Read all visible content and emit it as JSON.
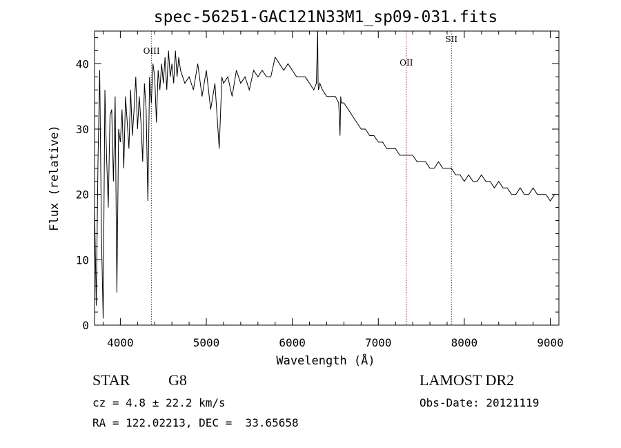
{
  "chart_data": {
    "type": "line",
    "title": "spec-56251-GAC121N33M1_sp09-031.fits",
    "xlabel": "Wavelength (Å)",
    "ylabel": "Flux (relative)",
    "xlim": [
      3700,
      9100
    ],
    "ylim": [
      0,
      45
    ],
    "xticks": [
      4000,
      5000,
      6000,
      7000,
      8000,
      9000
    ],
    "yticks": [
      0,
      10,
      20,
      30,
      40
    ],
    "grid": false,
    "legend": "none",
    "line_color": "#000000",
    "marker_color": "#8b1a1a",
    "line_markers": [
      {
        "label": "OIII",
        "x": 4363
      },
      {
        "label": "OII",
        "x": 7325
      },
      {
        "label": "SII",
        "x": 7850
      }
    ],
    "series": [
      {
        "x": [
          3700,
          3720,
          3740,
          3760,
          3780,
          3800,
          3820,
          3840,
          3860,
          3880,
          3900,
          3920,
          3940,
          3960,
          3980,
          4000,
          4020,
          4040,
          4060,
          4080,
          4100,
          4120,
          4140,
          4160,
          4180,
          4200,
          4220,
          4240,
          4260,
          4280,
          4300,
          4320,
          4340,
          4360,
          4380,
          4400,
          4420,
          4440,
          4460,
          4480,
          4500,
          4520,
          4540,
          4560,
          4580,
          4600,
          4620,
          4640,
          4660,
          4680,
          4700,
          4750,
          4800,
          4850,
          4900,
          4950,
          5000,
          5050,
          5100,
          5150,
          5170,
          5180,
          5200,
          5250,
          5300,
          5350,
          5400,
          5450,
          5500,
          5550,
          5600,
          5650,
          5700,
          5750,
          5800,
          5850,
          5900,
          5950,
          6000,
          6050,
          6100,
          6150,
          6200,
          6250,
          6280,
          6295,
          6300,
          6305,
          6320,
          6350,
          6400,
          6450,
          6500,
          6540,
          6555,
          6563,
          6570,
          6600,
          6650,
          6700,
          6750,
          6800,
          6850,
          6900,
          6950,
          7000,
          7050,
          7100,
          7150,
          7200,
          7250,
          7300,
          7350,
          7400,
          7450,
          7500,
          7550,
          7600,
          7650,
          7700,
          7750,
          7800,
          7850,
          7900,
          7950,
          8000,
          8050,
          8100,
          8150,
          8200,
          8250,
          8300,
          8350,
          8400,
          8450,
          8500,
          8550,
          8600,
          8650,
          8700,
          8750,
          8800,
          8850,
          8900,
          8950,
          9000,
          9050
        ],
        "y": [
          18,
          3,
          25,
          39,
          14,
          1,
          36,
          26,
          18,
          32,
          33,
          22,
          35,
          5,
          30,
          28,
          33,
          24,
          35,
          31,
          27,
          36,
          29,
          33,
          38,
          30,
          35,
          31,
          25,
          37,
          33,
          19,
          38,
          34,
          40,
          38,
          31,
          39,
          36,
          40,
          37,
          41,
          36,
          42,
          38,
          40,
          37,
          42,
          38,
          41,
          39,
          37,
          38,
          36,
          40,
          35,
          39,
          33,
          37,
          27,
          34,
          38,
          37,
          38,
          35,
          39,
          37,
          38,
          36,
          39,
          38,
          39,
          38,
          38,
          41,
          40,
          39,
          40,
          39,
          38,
          38,
          38,
          37,
          36,
          37,
          45,
          37,
          36,
          37,
          36,
          35,
          35,
          35,
          34,
          29,
          35,
          34,
          34,
          33,
          32,
          31,
          30,
          30,
          29,
          29,
          28,
          28,
          27,
          27,
          27,
          26,
          26,
          26,
          26,
          25,
          25,
          25,
          24,
          24,
          25,
          24,
          24,
          24,
          23,
          23,
          22,
          23,
          22,
          22,
          23,
          22,
          22,
          21,
          22,
          21,
          21,
          20,
          20,
          21,
          20,
          20,
          21,
          20,
          20,
          20,
          19,
          20
        ]
      }
    ]
  },
  "info": {
    "object_class": "STAR",
    "subclass": "G8",
    "survey": "LAMOST DR2",
    "cz_line": "cz = 4.8 ± 22.2 km/s",
    "obs_date_line": "Obs-Date: 20121119",
    "radec_line": "RA = 122.02213, DEC =  33.65658"
  }
}
